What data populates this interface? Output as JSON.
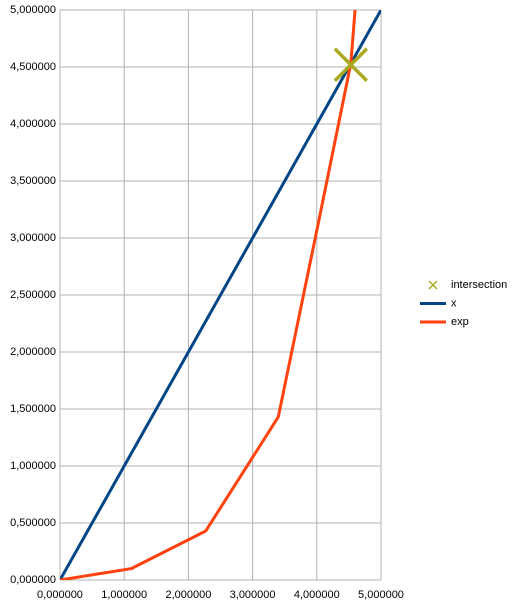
{
  "chart_data": {
    "type": "scatter",
    "series": [
      {
        "name": "intersection",
        "color": "#aaaa22",
        "mode": "markers",
        "x": [
          4.53
        ],
        "values": [
          4.52
        ]
      },
      {
        "name": "x",
        "color": "#004586",
        "mode": "lines",
        "x": [
          0,
          5
        ],
        "values": [
          0,
          5
        ]
      },
      {
        "name": "exp",
        "color": "#ff420e",
        "mode": "lines",
        "x": [
          0,
          1.11,
          2.27,
          3.4,
          4.02,
          4.53,
          4.6
        ],
        "values": [
          0,
          0.1,
          0.43,
          1.43,
          3.12,
          4.53,
          5.03
        ]
      }
    ],
    "xlim": [
      0,
      5
    ],
    "ylim": [
      0,
      5
    ],
    "xticks": [
      {
        "value": 0,
        "label": "0,000000"
      },
      {
        "value": 1,
        "label": "1,000000"
      },
      {
        "value": 2,
        "label": "2,000000"
      },
      {
        "value": 3,
        "label": "3,000000"
      },
      {
        "value": 4,
        "label": "4,000000"
      },
      {
        "value": 5,
        "label": "5,000000"
      }
    ],
    "yticks": [
      {
        "value": 0,
        "label": "0,000000"
      },
      {
        "value": 0.5,
        "label": "0,500000"
      },
      {
        "value": 1,
        "label": "1,000000"
      },
      {
        "value": 1.5,
        "label": "1,500000"
      },
      {
        "value": 2,
        "label": "2,000000"
      },
      {
        "value": 2.5,
        "label": "2,500000"
      },
      {
        "value": 3,
        "label": "3,000000"
      },
      {
        "value": 3.5,
        "label": "3,500000"
      },
      {
        "value": 4,
        "label": "4,000000"
      },
      {
        "value": 4.5,
        "label": "4,500000"
      },
      {
        "value": 5,
        "label": "5,000000"
      }
    ],
    "grid": true,
    "legend": "right"
  }
}
